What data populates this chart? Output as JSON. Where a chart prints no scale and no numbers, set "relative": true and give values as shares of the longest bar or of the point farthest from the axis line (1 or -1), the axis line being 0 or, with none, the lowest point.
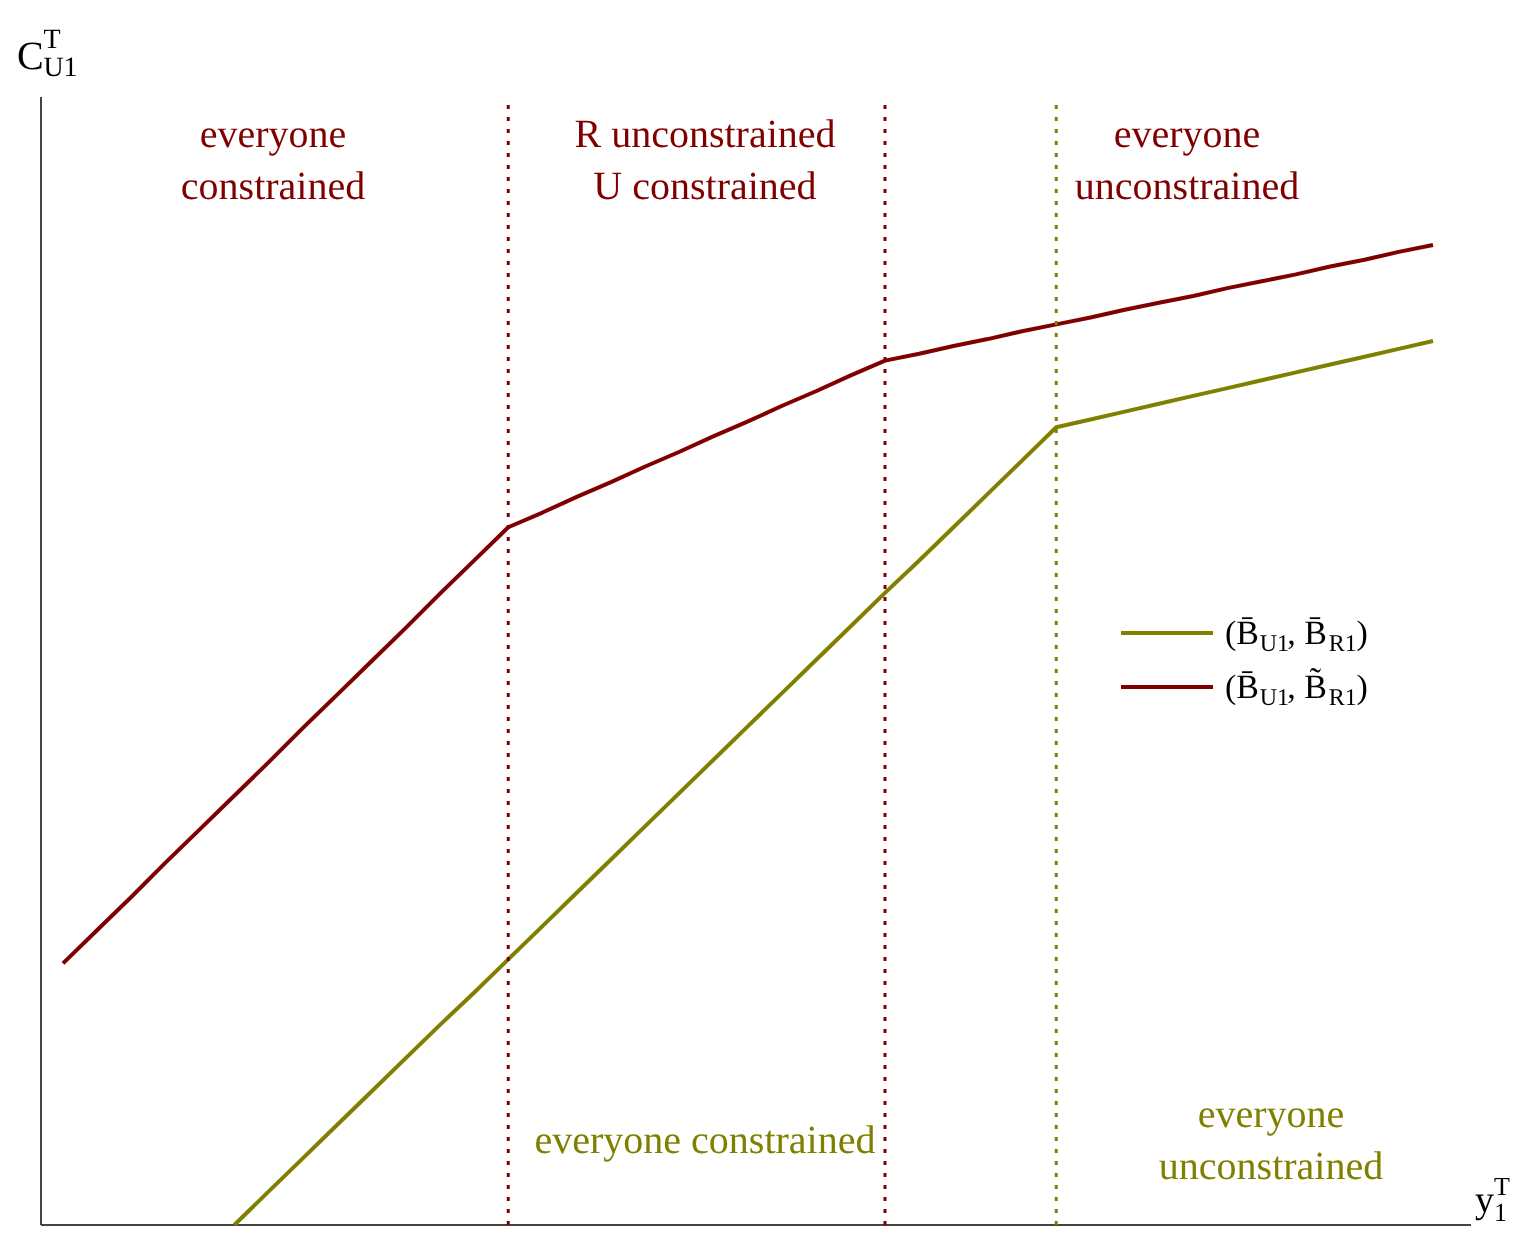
{
  "chart_data": {
    "type": "line",
    "relative": true,
    "legend": "right",
    "line_style": "solid",
    "xlabel": "y$_{1}$$^{T}$",
    "ylabel": "C$^{T}$$_{U1}$",
    "categories": [
      null,
      null,
      null,
      null,
      null,
      null,
      null,
      null,
      null,
      null,
      null,
      null,
      null,
      null,
      null,
      null,
      null,
      null,
      null,
      null,
      null,
      null,
      null,
      null,
      null,
      null,
      null,
      null,
      null,
      null,
      null,
      null,
      null,
      null,
      null,
      null,
      null,
      null,
      null,
      null,
      null
    ],
    "series": [
      {
        "name": "(B̄$_{U1}$, B̄$_{R1}$)",
        "color": "#808000",
        "values": [
          null,
          null,
          null,
          null,
          null,
          0,
          0.034,
          0.068,
          0.102,
          0.136,
          0.17,
          0.204,
          0.237,
          0.271,
          0.305,
          0.339,
          0.373,
          0.407,
          0.441,
          0.475,
          0.509,
          0.543,
          0.577,
          0.611,
          0.645,
          0.678,
          0.712,
          0.746,
          0.78,
          0.814,
          0.822,
          0.83,
          0.838,
          0.846,
          0.854,
          0.862,
          0.87,
          0.878,
          0.886,
          0.894,
          0.902
        ]
      },
      {
        "name": "(B̄$_{U1}$, B̃$_{R1}$)",
        "color": "#800000",
        "values": [
          0.267,
          0.301,
          0.335,
          0.37,
          0.404,
          0.438,
          0.472,
          0.507,
          0.541,
          0.575,
          0.609,
          0.644,
          0.678,
          0.712,
          0.727,
          0.743,
          0.758,
          0.774,
          0.789,
          0.805,
          0.82,
          0.836,
          0.851,
          0.867,
          0.882,
          0.889,
          0.897,
          0.904,
          0.912,
          0.919,
          0.926,
          0.934,
          0.941,
          0.948,
          0.956,
          0.963,
          0.97,
          0.978,
          0.985,
          0.993,
          1
        ]
      }
    ],
    "annotations": [
      "everyone\nconstrained",
      "R unconstrained\nU constrained",
      "everyone\nunconstrained",
      "everyone constrained",
      "everyone\nunconstrained"
    ]
  }
}
